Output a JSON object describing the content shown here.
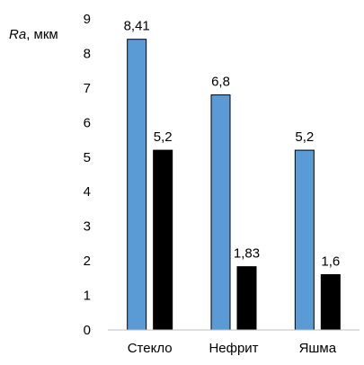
{
  "chart_data": {
    "type": "bar",
    "ylabel_symbol": "Ra",
    "ylabel_rest": ", мкм",
    "categories": [
      "Стекло",
      "Нефрит",
      "Яшма"
    ],
    "series": [
      {
        "values": [
          8.41,
          6.8,
          5.2
        ],
        "labels": [
          "8,41",
          "6,8",
          "5,2"
        ],
        "color": "#5B9BD5"
      },
      {
        "values": [
          5.2,
          1.83,
          1.6
        ],
        "labels": [
          "5,2",
          "1,83",
          "1,6"
        ],
        "color": "#000000"
      }
    ],
    "ylim": [
      0,
      9
    ],
    "yticks": [
      0,
      1,
      2,
      3,
      4,
      5,
      6,
      7,
      8,
      9
    ],
    "grid": false,
    "legend": "none"
  }
}
